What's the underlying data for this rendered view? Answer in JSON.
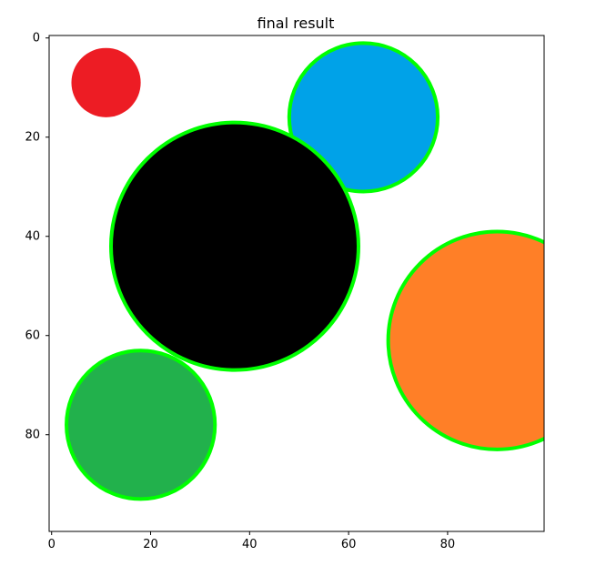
{
  "chart_data": {
    "type": "image",
    "title": "final result",
    "xlim": [
      0,
      99
    ],
    "ylim": [
      99,
      0
    ],
    "x_ticks": [
      0,
      20,
      40,
      60,
      80
    ],
    "y_ticks": [
      0,
      20,
      40,
      60,
      80
    ],
    "grid": false,
    "legend": "none",
    "circles": [
      {
        "name": "red-circle",
        "cx": 11,
        "cy": 9,
        "r": 7,
        "fill": "#ed1c24",
        "outline": "",
        "outline_visible": false
      },
      {
        "name": "blue-circle",
        "cx": 63,
        "cy": 16,
        "r": 15,
        "fill": "#00a2e8",
        "outline": "#00ff00",
        "outline_visible": true
      },
      {
        "name": "black-circle",
        "cx": 37,
        "cy": 42,
        "r": 25,
        "fill": "#000000",
        "outline": "#00ff00",
        "outline_visible": true
      },
      {
        "name": "orange-circle",
        "cx": 90,
        "cy": 61,
        "r": 22,
        "fill": "#ff7f27",
        "outline": "#00ff00",
        "outline_visible": true
      },
      {
        "name": "green-circle",
        "cx": 18,
        "cy": 78,
        "r": 15,
        "fill": "#22b14c",
        "outline": "#00ff00",
        "outline_visible": true
      }
    ]
  }
}
